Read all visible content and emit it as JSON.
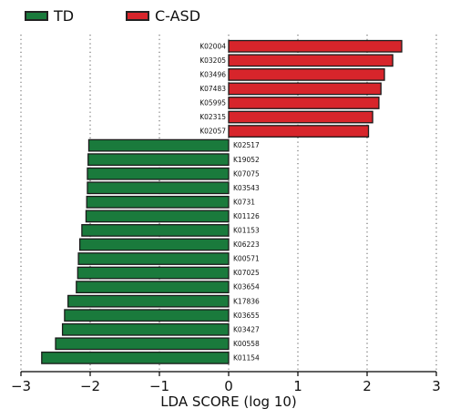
{
  "colors": {
    "TD": "#1a7a3c",
    "C-ASD": "#d7252b",
    "axis": "#000000",
    "grid": "#555555"
  },
  "chart_data": {
    "type": "bar",
    "orientation": "horizontal",
    "xlabel": "LDA SCORE (log 10)",
    "xlim": [
      -3,
      3
    ],
    "xticks": [
      -3,
      -2,
      -1,
      0,
      1,
      2,
      3
    ],
    "grid": "vertical dotted lines at each x tick",
    "legend": {
      "placement": "top-left",
      "entries": [
        "TD",
        "C-ASD"
      ]
    },
    "series": [
      {
        "name": "C-ASD",
        "color": "#d7252b",
        "categories": [
          "K02004",
          "K03205",
          "K03496",
          "K07483",
          "K05995",
          "K02315",
          "K02057"
        ],
        "values": [
          2.5,
          2.37,
          2.25,
          2.2,
          2.17,
          2.08,
          2.02
        ]
      },
      {
        "name": "TD",
        "color": "#1a7a3c",
        "categories": [
          "K02517",
          "K19052",
          "K07075",
          "K03543",
          "K0731",
          "K01126",
          "K01153",
          "K06223",
          "K00571",
          "K07025",
          "K03654",
          "K17836",
          "K03655",
          "K03427",
          "K00558",
          "K01154"
        ],
        "values": [
          -2.02,
          -2.03,
          -2.04,
          -2.04,
          -2.05,
          -2.06,
          -2.12,
          -2.15,
          -2.17,
          -2.18,
          -2.2,
          -2.32,
          -2.37,
          -2.4,
          -2.5,
          -2.7
        ]
      }
    ]
  }
}
